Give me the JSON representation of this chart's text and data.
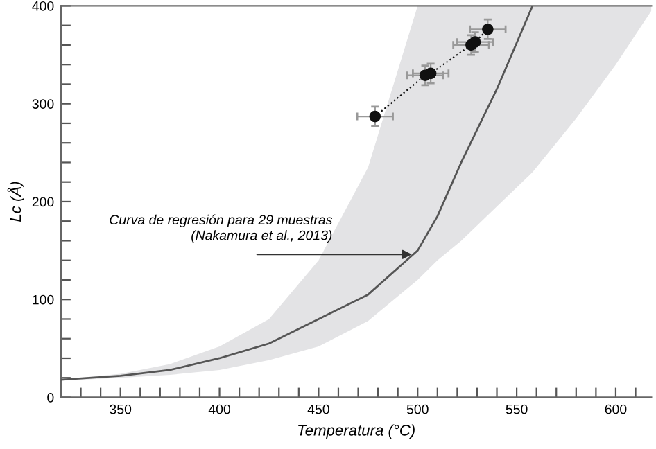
{
  "chart_data": {
    "type": "line",
    "xlabel": "Temperatura (°C)",
    "ylabel": "Lc (Å)",
    "xlim": [
      320,
      618
    ],
    "ylim": [
      0,
      400
    ],
    "xticks": [
      350,
      400,
      450,
      500,
      550,
      600,
      {
        "value": 330,
        "label": null
      },
      {
        "value": 340,
        "label": null
      },
      {
        "value": 360,
        "label": null
      },
      {
        "value": 370,
        "label": null
      },
      {
        "value": 380,
        "label": null
      },
      {
        "value": 390,
        "label": null
      },
      {
        "value": 410,
        "label": null
      },
      {
        "value": 420,
        "label": null
      },
      {
        "value": 430,
        "label": null
      },
      {
        "value": 440,
        "label": null
      },
      {
        "value": 460,
        "label": null
      },
      {
        "value": 470,
        "label": null
      },
      {
        "value": 480,
        "label": null
      },
      {
        "value": 490,
        "label": null
      },
      {
        "value": 510,
        "label": null
      },
      {
        "value": 520,
        "label": null
      },
      {
        "value": 530,
        "label": null
      },
      {
        "value": 540,
        "label": null
      },
      {
        "value": 560,
        "label": null
      },
      {
        "value": 570,
        "label": null
      },
      {
        "value": 580,
        "label": null
      },
      {
        "value": 590,
        "label": null
      },
      {
        "value": 610,
        "label": null
      }
    ],
    "yticks": [
      0,
      100,
      200,
      300,
      400,
      {
        "value": 20,
        "label": null
      },
      {
        "value": 40,
        "label": null
      },
      {
        "value": 60,
        "label": null
      },
      {
        "value": 80,
        "label": null
      },
      {
        "value": 120,
        "label": null
      },
      {
        "value": 140,
        "label": null
      },
      {
        "value": 160,
        "label": null
      },
      {
        "value": 180,
        "label": null
      },
      {
        "value": 220,
        "label": null
      },
      {
        "value": 240,
        "label": null
      },
      {
        "value": 260,
        "label": null
      },
      {
        "value": 280,
        "label": null
      },
      {
        "value": 320,
        "label": null
      },
      {
        "value": 340,
        "label": null
      },
      {
        "value": 360,
        "label": null
      },
      {
        "value": 380,
        "label": null
      }
    ],
    "grid": false,
    "legend": false,
    "series": [
      {
        "color": "#555555",
        "marker": "none",
        "line_style": "solid",
        "x": [
          320,
          350,
          375,
          400,
          425,
          450,
          475,
          500,
          510,
          522,
          540,
          558,
          580,
          600,
          618
        ],
        "values": [
          18,
          22,
          28,
          40,
          55,
          80,
          105,
          150,
          185,
          240,
          315,
          400,
          null,
          null,
          null
        ],
        "lower": [
          17,
          20,
          23,
          28,
          38,
          52,
          78,
          120,
          140,
          160,
          195,
          230,
          285,
          340,
          395
        ],
        "upper": [
          18,
          24,
          34,
          52,
          80,
          140,
          235,
          400,
          400,
          400,
          400,
          400,
          400,
          400,
          400
        ]
      },
      {
        "color": "#111111",
        "marker": "circle",
        "line_style": "dotted",
        "x": [
          478.5,
          503.8,
          506.6,
          527,
          529,
          535.4
        ],
        "values": [
          287,
          329,
          331,
          360,
          363,
          376
        ],
        "errors": [
          10,
          10,
          10,
          10,
          10,
          10
        ],
        "xerrors": [
          9,
          9,
          9,
          9,
          9,
          9
        ]
      }
    ],
    "annotations": [
      {
        "text": "Curva de regresión para 29 muestras\n(Nakamura et al., 2013)",
        "x": 499,
        "y": 146
      }
    ]
  }
}
